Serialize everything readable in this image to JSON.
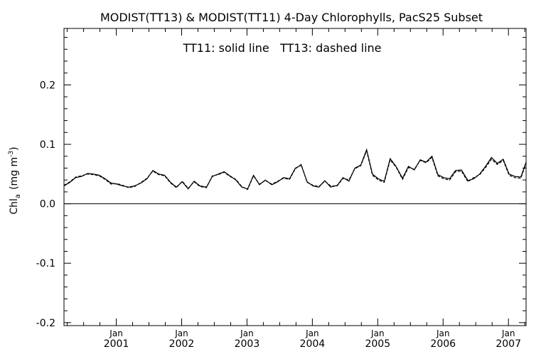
{
  "chart_data": {
    "type": "line",
    "title": "MODIST(TT13) & MODIST(TT11) 4-Day Chlorophylls, PacS25 Subset",
    "annotation": "TT11: solid line   TT13: dashed line",
    "ylabel_main": "Chl",
    "ylabel_sub": "a",
    "ylabel_unit": "(mg m",
    "ylabel_exp": "-3",
    "ylabel_close": ")",
    "ylim": [
      -0.205,
      0.295
    ],
    "yticks": [
      {
        "value": -0.2,
        "label": "-0.2"
      },
      {
        "value": -0.1,
        "label": "-0.1"
      },
      {
        "value": 0.0,
        "label": "0.0"
      },
      {
        "value": 0.1,
        "label": "0.1"
      },
      {
        "value": 0.2,
        "label": "0.2"
      }
    ],
    "xlim": [
      2000.2,
      2007.27
    ],
    "xticks": [
      {
        "value": 2001.0,
        "month": "Jan",
        "year": "2001"
      },
      {
        "value": 2002.0,
        "month": "Jan",
        "year": "2002"
      },
      {
        "value": 2003.0,
        "month": "Jan",
        "year": "2003"
      },
      {
        "value": 2004.0,
        "month": "Jan",
        "year": "2004"
      },
      {
        "value": 2005.0,
        "month": "Jan",
        "year": "2005"
      },
      {
        "value": 2006.0,
        "month": "Jan",
        "year": "2006"
      },
      {
        "value": 2007.0,
        "month": "Jan",
        "year": "2007"
      }
    ],
    "zero_line": true,
    "grid": false,
    "x": [
      2000.2,
      2000.29,
      2000.38,
      2000.47,
      2000.56,
      2000.65,
      2000.74,
      2000.83,
      2000.92,
      2001.01,
      2001.1,
      2001.19,
      2001.28,
      2001.38,
      2001.47,
      2001.56,
      2001.65,
      2001.74,
      2001.83,
      2001.92,
      2002.01,
      2002.1,
      2002.19,
      2002.28,
      2002.38,
      2002.47,
      2002.56,
      2002.65,
      2002.74,
      2002.83,
      2002.92,
      2003.01,
      2003.1,
      2003.19,
      2003.28,
      2003.38,
      2003.47,
      2003.56,
      2003.65,
      2003.74,
      2003.83,
      2003.92,
      2004.01,
      2004.1,
      2004.19,
      2004.28,
      2004.38,
      2004.47,
      2004.56,
      2004.65,
      2004.74,
      2004.83,
      2004.92,
      2005.01,
      2005.1,
      2005.19,
      2005.28,
      2005.38,
      2005.47,
      2005.56,
      2005.65,
      2005.74,
      2005.83,
      2005.92,
      2006.01,
      2006.1,
      2006.19,
      2006.28,
      2006.38,
      2006.47,
      2006.56,
      2006.65,
      2006.74,
      2006.83,
      2006.92,
      2007.01,
      2007.1,
      2007.19,
      2007.27
    ],
    "series": [
      {
        "name": "TT11",
        "style": "solid",
        "values": [
          0.03,
          0.036,
          0.044,
          0.046,
          0.051,
          0.05,
          0.048,
          0.042,
          0.035,
          0.033,
          0.03,
          0.028,
          0.03,
          0.035,
          0.042,
          0.056,
          0.05,
          0.048,
          0.036,
          0.028,
          0.037,
          0.025,
          0.038,
          0.03,
          0.028,
          0.046,
          0.05,
          0.054,
          0.047,
          0.04,
          0.028,
          0.025,
          0.048,
          0.032,
          0.04,
          0.032,
          0.037,
          0.044,
          0.042,
          0.06,
          0.065,
          0.037,
          0.03,
          0.028,
          0.039,
          0.028,
          0.031,
          0.044,
          0.038,
          0.06,
          0.065,
          0.091,
          0.05,
          0.042,
          0.038,
          0.076,
          0.063,
          0.043,
          0.063,
          0.057,
          0.074,
          0.07,
          0.08,
          0.049,
          0.044,
          0.042,
          0.056,
          0.057,
          0.039,
          0.042,
          0.05,
          0.063,
          0.078,
          0.068,
          0.075,
          0.05,
          0.046,
          0.045,
          0.07
        ]
      },
      {
        "name": "TT13",
        "style": "dashed",
        "values": [
          0.031,
          0.037,
          0.045,
          0.047,
          0.05,
          0.049,
          0.047,
          0.041,
          0.033,
          0.034,
          0.031,
          0.027,
          0.029,
          0.036,
          0.043,
          0.055,
          0.049,
          0.047,
          0.035,
          0.027,
          0.038,
          0.026,
          0.037,
          0.029,
          0.027,
          0.047,
          0.049,
          0.053,
          0.046,
          0.041,
          0.029,
          0.024,
          0.047,
          0.033,
          0.039,
          0.033,
          0.038,
          0.043,
          0.041,
          0.059,
          0.066,
          0.036,
          0.031,
          0.029,
          0.038,
          0.03,
          0.03,
          0.043,
          0.04,
          0.059,
          0.064,
          0.089,
          0.048,
          0.04,
          0.036,
          0.074,
          0.062,
          0.041,
          0.061,
          0.058,
          0.073,
          0.069,
          0.078,
          0.047,
          0.042,
          0.04,
          0.054,
          0.055,
          0.037,
          0.044,
          0.049,
          0.061,
          0.075,
          0.066,
          0.073,
          0.048,
          0.044,
          0.043,
          0.068
        ]
      }
    ]
  }
}
